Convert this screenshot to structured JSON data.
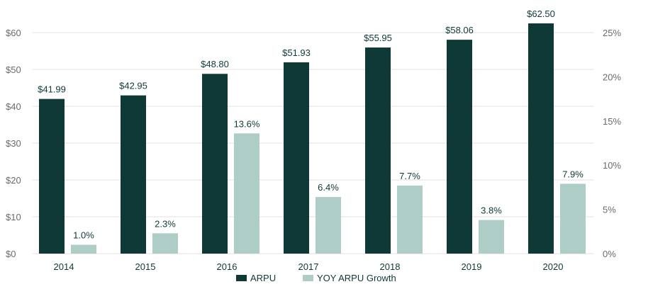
{
  "chart_data": {
    "type": "bar",
    "categories": [
      "2014",
      "2015",
      "2016",
      "2017",
      "2018",
      "2019",
      "2020"
    ],
    "series": [
      {
        "name": "ARPU",
        "axis": "left",
        "color": "#0f3937",
        "values": [
          41.99,
          42.95,
          48.8,
          51.93,
          55.95,
          58.06,
          62.5
        ],
        "labels": [
          "$41.99",
          "$42.95",
          "$48.80",
          "$51.93",
          "$55.95",
          "$58.06",
          "$62.50"
        ]
      },
      {
        "name": "YOY ARPU Growth",
        "axis": "right",
        "color": "#adcdc6",
        "values": [
          1.0,
          2.3,
          13.6,
          6.4,
          7.7,
          3.8,
          7.9
        ],
        "labels": [
          "1.0%",
          "2.3%",
          "13.6%",
          "6.4%",
          "7.7%",
          "3.8%",
          "7.9%"
        ]
      }
    ],
    "left_axis": {
      "ylim": [
        0,
        60
      ],
      "ticks": [
        "$0",
        "$10",
        "$20",
        "$30",
        "$40",
        "$50",
        "$60"
      ]
    },
    "right_axis": {
      "ylim": [
        0,
        25
      ],
      "ticks": [
        "0%",
        "5%",
        "10%",
        "15%",
        "20%",
        "25%"
      ]
    },
    "grid": true,
    "legend_position": "bottom"
  }
}
